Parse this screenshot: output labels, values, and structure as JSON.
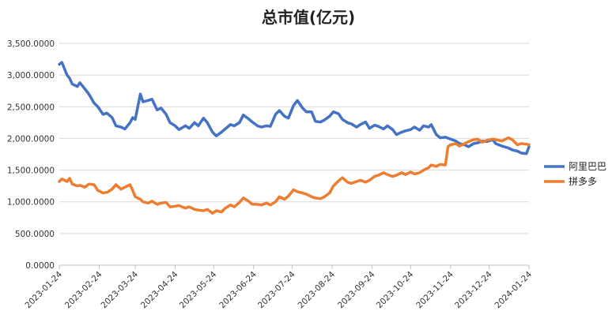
{
  "chart_data": {
    "type": "line",
    "title": "总市值(亿元)",
    "xlabel": "",
    "ylabel": "",
    "ylim": [
      0,
      3500
    ],
    "y_ticks": [
      "0.0000",
      "500.0000",
      "1,000.0000",
      "1,500.0000",
      "2,000.0000",
      "2,500.0000",
      "3,000.0000",
      "3,500.0000"
    ],
    "x_range": [
      "2023-01-24",
      "2024-01-24"
    ],
    "x_ticks": [
      "2023-01-24",
      "2023-02-24",
      "2023-03-24",
      "2023-04-24",
      "2023-05-24",
      "2023-06-24",
      "2023-07-24",
      "2023-08-24",
      "2023-09-24",
      "2023-10-24",
      "2023-11-24",
      "2023-12-24",
      "2024-01-24"
    ],
    "grid": true,
    "legend_position": "right",
    "series": [
      {
        "name": "阿里巴巴",
        "color": "#4472C4",
        "points": [
          [
            "2023-01-24",
            3170
          ],
          [
            "2023-01-26",
            3200
          ],
          [
            "2023-01-30",
            3000
          ],
          [
            "2023-02-01",
            2950
          ],
          [
            "2023-02-03",
            2860
          ],
          [
            "2023-02-07",
            2820
          ],
          [
            "2023-02-09",
            2880
          ],
          [
            "2023-02-13",
            2780
          ],
          [
            "2023-02-16",
            2700
          ],
          [
            "2023-02-20",
            2560
          ],
          [
            "2023-02-23",
            2500
          ],
          [
            "2023-02-27",
            2380
          ],
          [
            "2023-03-02",
            2400
          ],
          [
            "2023-03-06",
            2330
          ],
          [
            "2023-03-09",
            2200
          ],
          [
            "2023-03-13",
            2180
          ],
          [
            "2023-03-16",
            2150
          ],
          [
            "2023-03-20",
            2250
          ],
          [
            "2023-03-22",
            2330
          ],
          [
            "2023-03-24",
            2300
          ],
          [
            "2023-03-28",
            2700
          ],
          [
            "2023-03-30",
            2580
          ],
          [
            "2023-04-03",
            2600
          ],
          [
            "2023-04-06",
            2620
          ],
          [
            "2023-04-10",
            2450
          ],
          [
            "2023-04-13",
            2480
          ],
          [
            "2023-04-17",
            2380
          ],
          [
            "2023-04-20",
            2250
          ],
          [
            "2023-04-24",
            2200
          ],
          [
            "2023-04-27",
            2140
          ],
          [
            "2023-05-02",
            2200
          ],
          [
            "2023-05-05",
            2160
          ],
          [
            "2023-05-09",
            2250
          ],
          [
            "2023-05-12",
            2200
          ],
          [
            "2023-05-16",
            2320
          ],
          [
            "2023-05-19",
            2250
          ],
          [
            "2023-05-23",
            2100
          ],
          [
            "2023-05-26",
            2040
          ],
          [
            "2023-05-30",
            2100
          ],
          [
            "2023-06-02",
            2150
          ],
          [
            "2023-06-06",
            2220
          ],
          [
            "2023-06-09",
            2200
          ],
          [
            "2023-06-13",
            2250
          ],
          [
            "2023-06-16",
            2370
          ],
          [
            "2023-06-20",
            2310
          ],
          [
            "2023-06-23",
            2260
          ],
          [
            "2023-06-27",
            2200
          ],
          [
            "2023-06-30",
            2180
          ],
          [
            "2023-07-04",
            2200
          ],
          [
            "2023-07-07",
            2190
          ],
          [
            "2023-07-11",
            2380
          ],
          [
            "2023-07-14",
            2440
          ],
          [
            "2023-07-18",
            2350
          ],
          [
            "2023-07-21",
            2320
          ],
          [
            "2023-07-25",
            2520
          ],
          [
            "2023-07-28",
            2600
          ],
          [
            "2023-08-01",
            2480
          ],
          [
            "2023-08-04",
            2420
          ],
          [
            "2023-08-08",
            2420
          ],
          [
            "2023-08-11",
            2270
          ],
          [
            "2023-08-15",
            2260
          ],
          [
            "2023-08-18",
            2290
          ],
          [
            "2023-08-22",
            2350
          ],
          [
            "2023-08-25",
            2420
          ],
          [
            "2023-08-29",
            2390
          ],
          [
            "2023-09-01",
            2300
          ],
          [
            "2023-09-05",
            2250
          ],
          [
            "2023-09-08",
            2230
          ],
          [
            "2023-09-12",
            2180
          ],
          [
            "2023-09-15",
            2220
          ],
          [
            "2023-09-19",
            2260
          ],
          [
            "2023-09-22",
            2160
          ],
          [
            "2023-09-26",
            2210
          ],
          [
            "2023-09-29",
            2190
          ],
          [
            "2023-10-03",
            2150
          ],
          [
            "2023-10-06",
            2200
          ],
          [
            "2023-10-10",
            2140
          ],
          [
            "2023-10-13",
            2060
          ],
          [
            "2023-10-17",
            2100
          ],
          [
            "2023-10-20",
            2120
          ],
          [
            "2023-10-24",
            2140
          ],
          [
            "2023-10-27",
            2180
          ],
          [
            "2023-10-31",
            2130
          ],
          [
            "2023-11-03",
            2200
          ],
          [
            "2023-11-07",
            2180
          ],
          [
            "2023-11-09",
            2220
          ],
          [
            "2023-11-13",
            2060
          ],
          [
            "2023-11-16",
            2010
          ],
          [
            "2023-11-20",
            2020
          ],
          [
            "2023-11-24",
            1990
          ],
          [
            "2023-11-28",
            1960
          ],
          [
            "2023-12-01",
            1920
          ],
          [
            "2023-12-05",
            1900
          ],
          [
            "2023-12-08",
            1870
          ],
          [
            "2023-12-12",
            1920
          ],
          [
            "2023-12-15",
            1930
          ],
          [
            "2023-12-19",
            1960
          ],
          [
            "2023-12-22",
            1950
          ],
          [
            "2023-12-27",
            1980
          ],
          [
            "2023-12-29",
            1920
          ],
          [
            "2024-01-03",
            1880
          ],
          [
            "2024-01-08",
            1850
          ],
          [
            "2024-01-11",
            1820
          ],
          [
            "2024-01-15",
            1800
          ],
          [
            "2024-01-18",
            1770
          ],
          [
            "2024-01-22",
            1760
          ],
          [
            "2024-01-24",
            1870
          ]
        ]
      },
      {
        "name": "拼多多",
        "color": "#ED7D31",
        "points": [
          [
            "2023-01-24",
            1320
          ],
          [
            "2023-01-26",
            1360
          ],
          [
            "2023-01-30",
            1320
          ],
          [
            "2023-02-01",
            1370
          ],
          [
            "2023-02-03",
            1280
          ],
          [
            "2023-02-07",
            1250
          ],
          [
            "2023-02-09",
            1260
          ],
          [
            "2023-02-13",
            1230
          ],
          [
            "2023-02-16",
            1280
          ],
          [
            "2023-02-20",
            1270
          ],
          [
            "2023-02-23",
            1180
          ],
          [
            "2023-02-27",
            1140
          ],
          [
            "2023-03-02",
            1150
          ],
          [
            "2023-03-06",
            1200
          ],
          [
            "2023-03-09",
            1270
          ],
          [
            "2023-03-13",
            1200
          ],
          [
            "2023-03-16",
            1230
          ],
          [
            "2023-03-20",
            1270
          ],
          [
            "2023-03-22",
            1180
          ],
          [
            "2023-03-24",
            1080
          ],
          [
            "2023-03-28",
            1040
          ],
          [
            "2023-03-30",
            1000
          ],
          [
            "2023-04-03",
            980
          ],
          [
            "2023-04-06",
            1010
          ],
          [
            "2023-04-10",
            960
          ],
          [
            "2023-04-13",
            980
          ],
          [
            "2023-04-17",
            990
          ],
          [
            "2023-04-20",
            920
          ],
          [
            "2023-04-24",
            930
          ],
          [
            "2023-04-27",
            940
          ],
          [
            "2023-05-02",
            900
          ],
          [
            "2023-05-05",
            920
          ],
          [
            "2023-05-09",
            880
          ],
          [
            "2023-05-12",
            870
          ],
          [
            "2023-05-16",
            860
          ],
          [
            "2023-05-19",
            880
          ],
          [
            "2023-05-23",
            820
          ],
          [
            "2023-05-26",
            860
          ],
          [
            "2023-05-30",
            840
          ],
          [
            "2023-06-02",
            900
          ],
          [
            "2023-06-06",
            950
          ],
          [
            "2023-06-09",
            920
          ],
          [
            "2023-06-13",
            990
          ],
          [
            "2023-06-16",
            1060
          ],
          [
            "2023-06-20",
            1010
          ],
          [
            "2023-06-23",
            960
          ],
          [
            "2023-06-27",
            960
          ],
          [
            "2023-06-30",
            950
          ],
          [
            "2023-07-04",
            980
          ],
          [
            "2023-07-07",
            950
          ],
          [
            "2023-07-11",
            1000
          ],
          [
            "2023-07-14",
            1080
          ],
          [
            "2023-07-18",
            1040
          ],
          [
            "2023-07-21",
            1090
          ],
          [
            "2023-07-25",
            1190
          ],
          [
            "2023-07-28",
            1160
          ],
          [
            "2023-08-01",
            1140
          ],
          [
            "2023-08-04",
            1120
          ],
          [
            "2023-08-08",
            1080
          ],
          [
            "2023-08-11",
            1060
          ],
          [
            "2023-08-15",
            1050
          ],
          [
            "2023-08-18",
            1080
          ],
          [
            "2023-08-22",
            1140
          ],
          [
            "2023-08-25",
            1250
          ],
          [
            "2023-08-29",
            1330
          ],
          [
            "2023-09-01",
            1380
          ],
          [
            "2023-09-05",
            1310
          ],
          [
            "2023-09-08",
            1290
          ],
          [
            "2023-09-12",
            1320
          ],
          [
            "2023-09-15",
            1340
          ],
          [
            "2023-09-19",
            1310
          ],
          [
            "2023-09-22",
            1340
          ],
          [
            "2023-09-26",
            1400
          ],
          [
            "2023-09-29",
            1420
          ],
          [
            "2023-10-03",
            1460
          ],
          [
            "2023-10-06",
            1430
          ],
          [
            "2023-10-10",
            1400
          ],
          [
            "2023-10-13",
            1420
          ],
          [
            "2023-10-17",
            1460
          ],
          [
            "2023-10-20",
            1430
          ],
          [
            "2023-10-24",
            1470
          ],
          [
            "2023-10-27",
            1440
          ],
          [
            "2023-10-31",
            1460
          ],
          [
            "2023-11-03",
            1500
          ],
          [
            "2023-11-07",
            1540
          ],
          [
            "2023-11-09",
            1580
          ],
          [
            "2023-11-13",
            1560
          ],
          [
            "2023-11-16",
            1590
          ],
          [
            "2023-11-20",
            1580
          ],
          [
            "2023-11-22",
            1870
          ],
          [
            "2023-11-24",
            1900
          ],
          [
            "2023-11-28",
            1920
          ],
          [
            "2023-12-01",
            1880
          ],
          [
            "2023-12-05",
            1920
          ],
          [
            "2023-12-08",
            1950
          ],
          [
            "2023-12-12",
            1980
          ],
          [
            "2023-12-15",
            1990
          ],
          [
            "2023-12-19",
            1940
          ],
          [
            "2023-12-22",
            1970
          ],
          [
            "2023-12-27",
            1990
          ],
          [
            "2023-12-29",
            1980
          ],
          [
            "2024-01-03",
            1960
          ],
          [
            "2024-01-08",
            2010
          ],
          [
            "2024-01-11",
            1980
          ],
          [
            "2024-01-15",
            1900
          ],
          [
            "2024-01-18",
            1920
          ],
          [
            "2024-01-22",
            1910
          ],
          [
            "2024-01-24",
            1900
          ]
        ]
      }
    ]
  }
}
